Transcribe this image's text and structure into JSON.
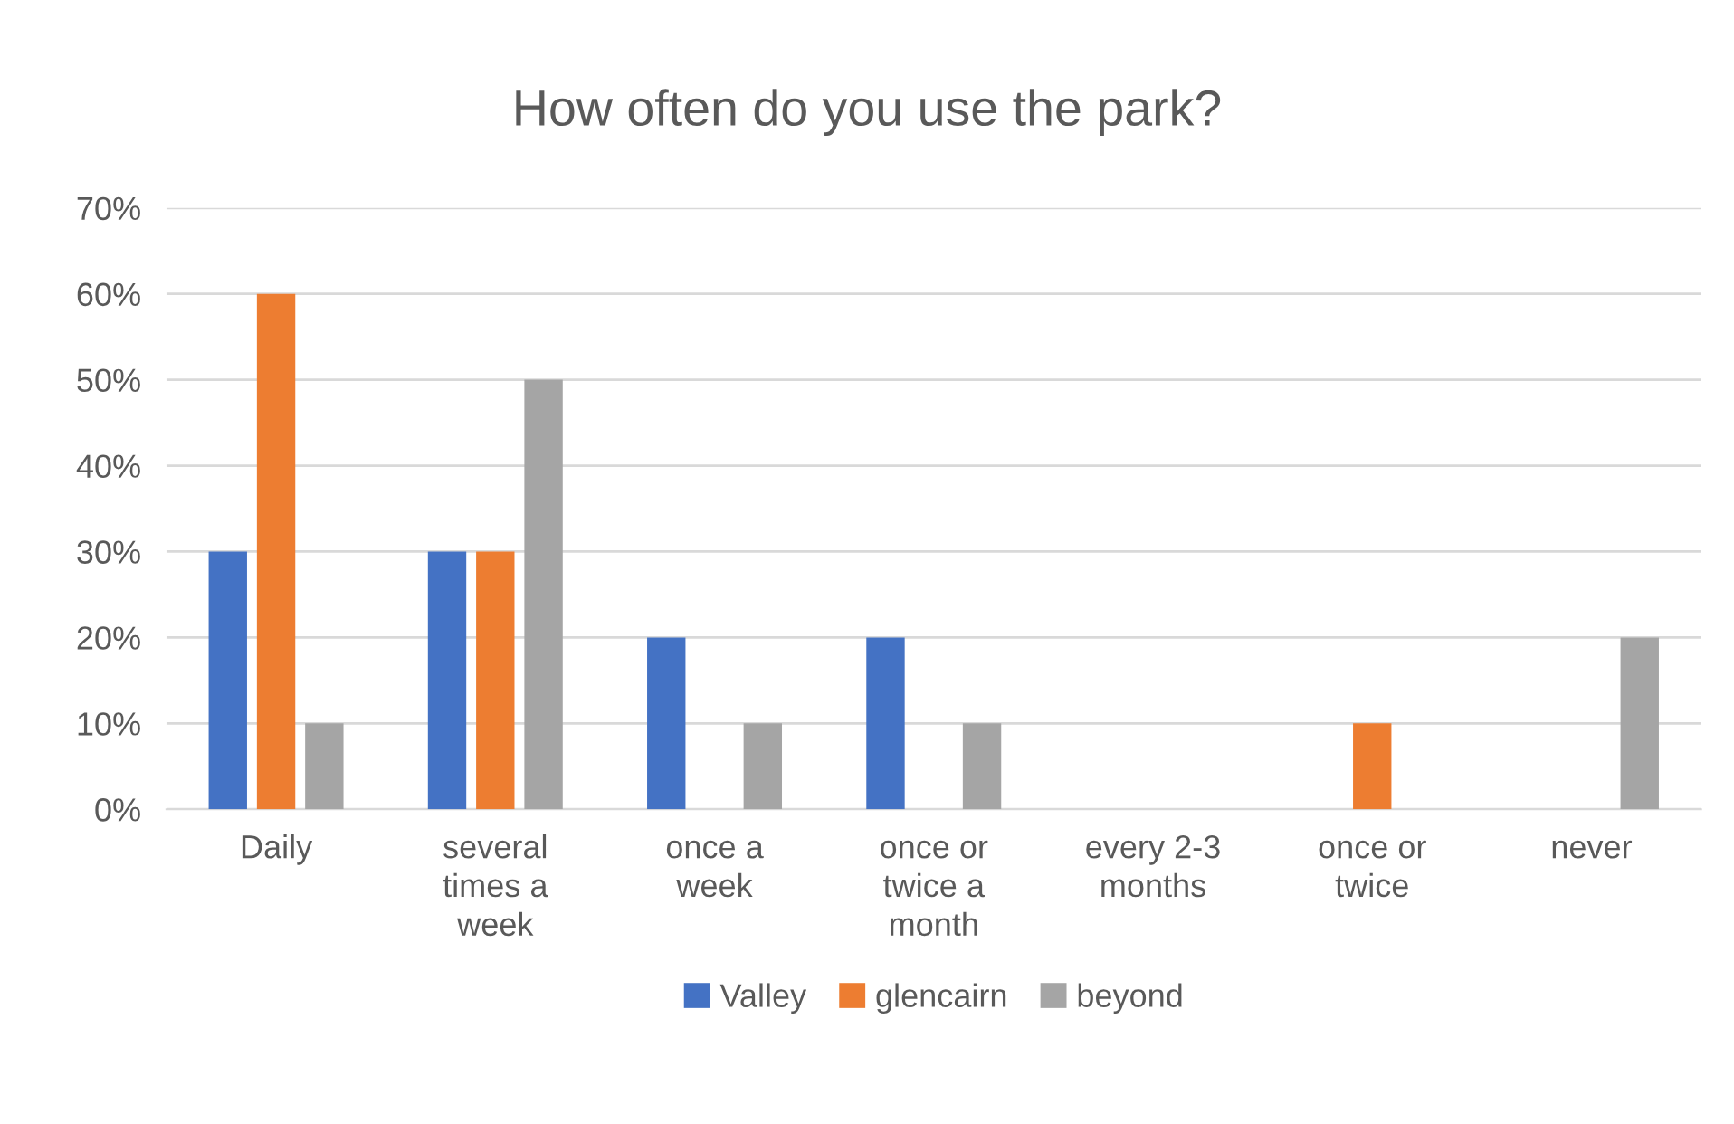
{
  "chart_data": {
    "type": "bar",
    "title": "How often do you use the park?",
    "categories": [
      "Daily",
      "several\ntimes a\nweek",
      "once a\nweek",
      "once or\ntwice a\nmonth",
      "every 2-3\nmonths",
      "once or\ntwice",
      "never"
    ],
    "series": [
      {
        "name": "Valley",
        "color": "#4472c4",
        "values": [
          30,
          30,
          20,
          20,
          0,
          0,
          0
        ]
      },
      {
        "name": "glencairn",
        "color": "#ed7d31",
        "values": [
          60,
          30,
          0,
          0,
          0,
          10,
          0
        ]
      },
      {
        "name": "beyond",
        "color": "#a5a5a5",
        "values": [
          10,
          50,
          10,
          10,
          0,
          0,
          20
        ]
      }
    ],
    "ylim": [
      0,
      70
    ],
    "yticks": [
      {
        "value": 0,
        "label": "0%"
      },
      {
        "value": 10,
        "label": "10%"
      },
      {
        "value": 20,
        "label": "20%"
      },
      {
        "value": 30,
        "label": "30%"
      },
      {
        "value": 40,
        "label": "40%"
      },
      {
        "value": 50,
        "label": "50%"
      },
      {
        "value": 60,
        "label": "60%"
      },
      {
        "value": 70,
        "label": "70%"
      }
    ],
    "grid": "y",
    "legend": "bottom"
  }
}
